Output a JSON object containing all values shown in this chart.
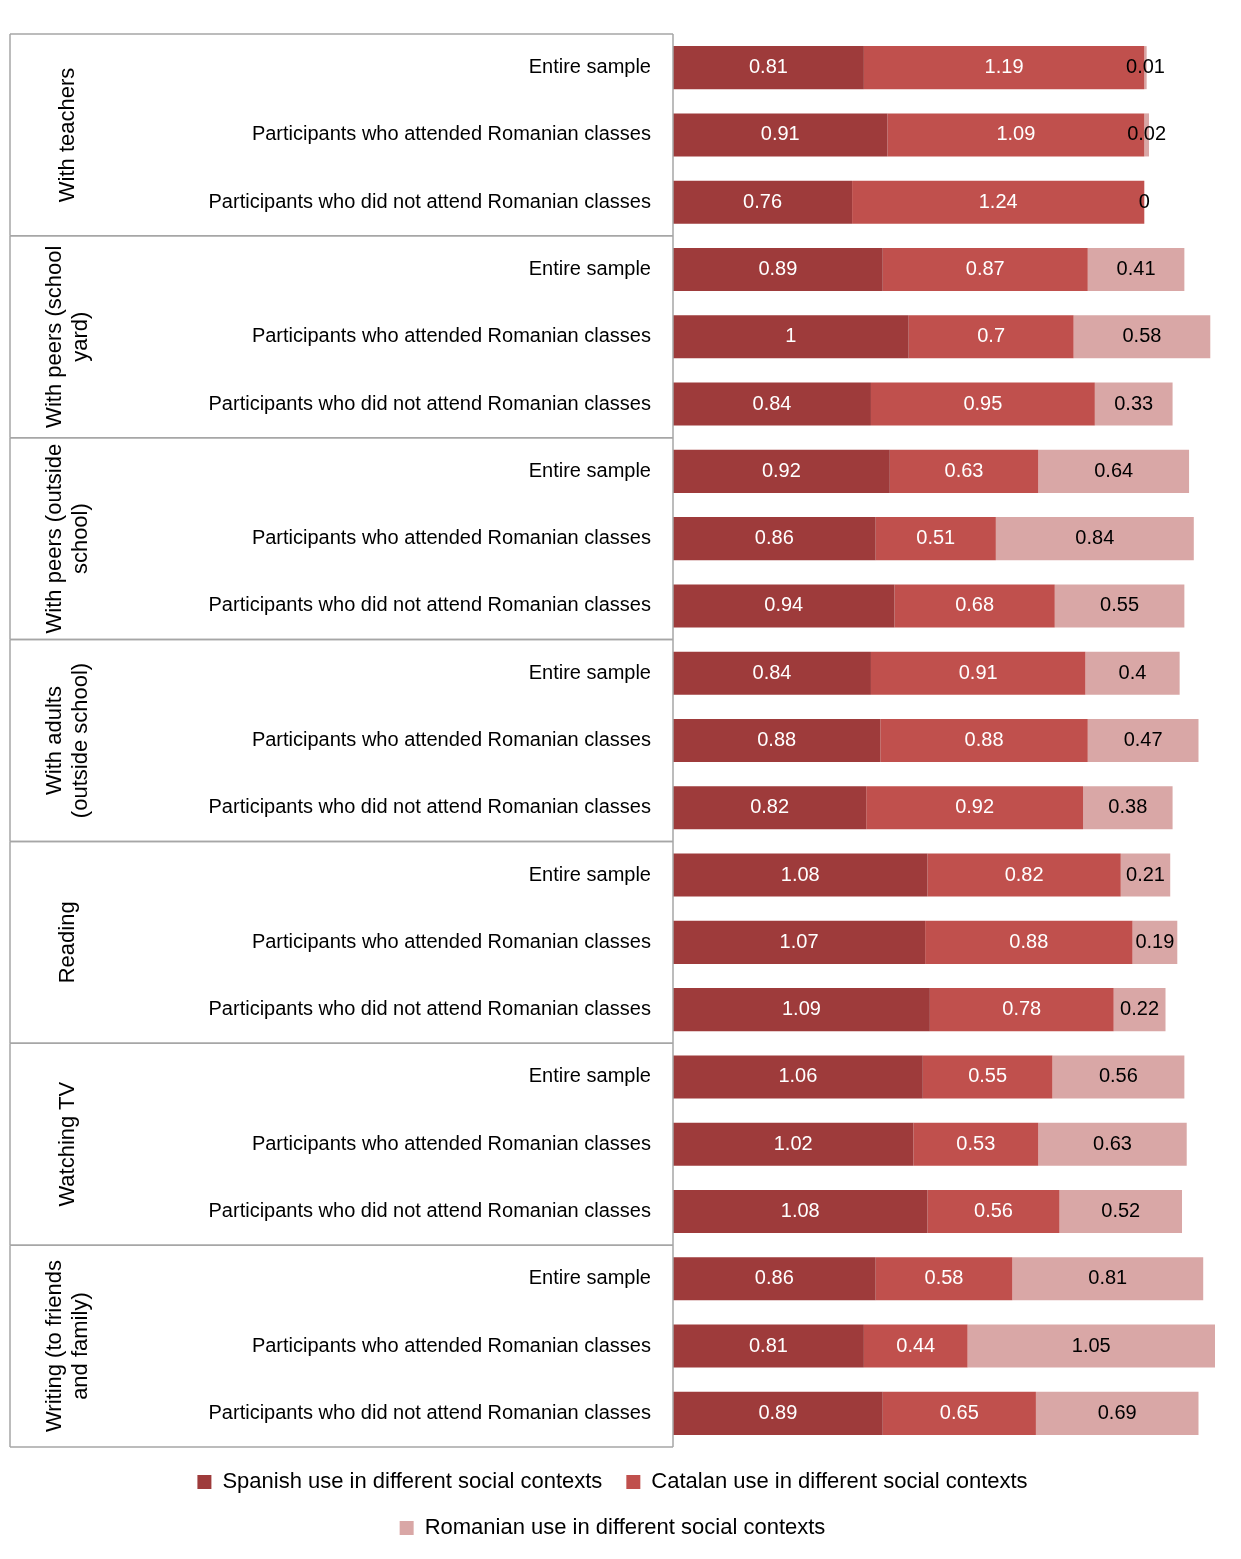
{
  "chart_data": {
    "type": "bar",
    "orientation": "horizontal",
    "stacked": true,
    "data_labels": true,
    "legend": "bottom",
    "tick_labels": "y",
    "categories": [
      "Entire sample",
      "Participants who attended Romanian classes",
      "Participants who did not attend Romanian classes",
      "Entire sample",
      "Participants who attended Romanian classes",
      "Participants who did not attend Romanian classes",
      "Entire sample",
      "Participants who attended Romanian classes",
      "Participants who did not attend Romanian classes",
      "Entire sample",
      "Participants who attended Romanian classes",
      "Participants who did not attend Romanian classes",
      "Entire sample",
      "Participants who attended Romanian classes",
      "Participants who did not attend Romanian classes",
      "Entire sample",
      "Participants who attended Romanian classes",
      "Participants who did not attend Romanian classes",
      "Entire sample",
      "Participants who attended Romanian classes",
      "Participants who did not attend Romanian classes"
    ],
    "annotations": [
      "With teachers",
      "With peers (school yard)",
      "With peers (outside school)",
      "With adults (outside school)",
      "Reading",
      "Watching TV",
      "Writing (to friends and family)"
    ],
    "series": [
      {
        "name": "Spanish use in different social contexts",
        "color": "#9e3b3b",
        "values": [
          0.81,
          0.91,
          0.76,
          0.89,
          1,
          0.84,
          0.92,
          0.86,
          0.94,
          0.84,
          0.88,
          0.82,
          1.08,
          1.07,
          1.09,
          1.06,
          1.02,
          1.08,
          0.86,
          0.81,
          0.89
        ]
      },
      {
        "name": "Catalan use in different social contexts",
        "color": "#c0504d",
        "values": [
          1.19,
          1.09,
          1.24,
          0.87,
          0.7,
          0.95,
          0.63,
          0.51,
          0.68,
          0.91,
          0.88,
          0.92,
          0.82,
          0.88,
          0.78,
          0.55,
          0.53,
          0.56,
          0.58,
          0.44,
          0.65
        ]
      },
      {
        "name": "Romanian use in different social contexts",
        "color": "#d9a7a6",
        "values": [
          0.01,
          0.02,
          0,
          0.41,
          0.58,
          0.33,
          0.64,
          0.84,
          0.55,
          0.4,
          0.47,
          0.38,
          0.21,
          0.19,
          0.22,
          0.56,
          0.63,
          0.52,
          0.81,
          1.05,
          0.69
        ]
      }
    ]
  }
}
